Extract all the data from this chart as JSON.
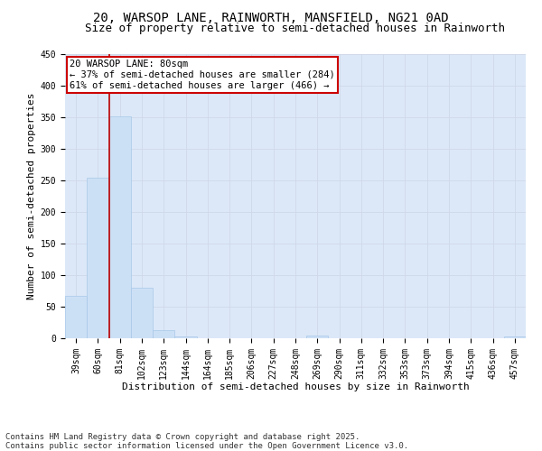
{
  "title_line1": "20, WARSOP LANE, RAINWORTH, MANSFIELD, NG21 0AD",
  "title_line2": "Size of property relative to semi-detached houses in Rainworth",
  "xlabel": "Distribution of semi-detached houses by size in Rainworth",
  "ylabel": "Number of semi-detached properties",
  "categories": [
    "39sqm",
    "60sqm",
    "81sqm",
    "102sqm",
    "123sqm",
    "144sqm",
    "164sqm",
    "185sqm",
    "206sqm",
    "227sqm",
    "248sqm",
    "269sqm",
    "290sqm",
    "311sqm",
    "332sqm",
    "353sqm",
    "373sqm",
    "394sqm",
    "415sqm",
    "436sqm",
    "457sqm"
  ],
  "values": [
    67,
    255,
    352,
    80,
    13,
    3,
    0,
    0,
    0,
    0,
    0,
    5,
    0,
    0,
    0,
    0,
    0,
    0,
    0,
    0,
    3
  ],
  "bar_color": "#cce0f5",
  "bar_edge_color": "#a8c8e8",
  "grid_color": "#d0d8e8",
  "bg_color": "#dce8f8",
  "annotation_text_line1": "20 WARSOP LANE: 80sqm",
  "annotation_text_line2": "← 37% of semi-detached houses are smaller (284)",
  "annotation_text_line3": "61% of semi-detached houses are larger (466) →",
  "annotation_box_color": "#ffffff",
  "annotation_box_edge_color": "#cc0000",
  "vline_color": "#bb0000",
  "footnote": "Contains HM Land Registry data © Crown copyright and database right 2025.\nContains public sector information licensed under the Open Government Licence v3.0.",
  "ylim": [
    0,
    450
  ],
  "yticks": [
    0,
    50,
    100,
    150,
    200,
    250,
    300,
    350,
    400,
    450
  ],
  "title_fontsize": 10,
  "subtitle_fontsize": 9,
  "axis_label_fontsize": 8,
  "tick_fontsize": 7,
  "footnote_fontsize": 6.5,
  "vline_x_index": 1.5
}
